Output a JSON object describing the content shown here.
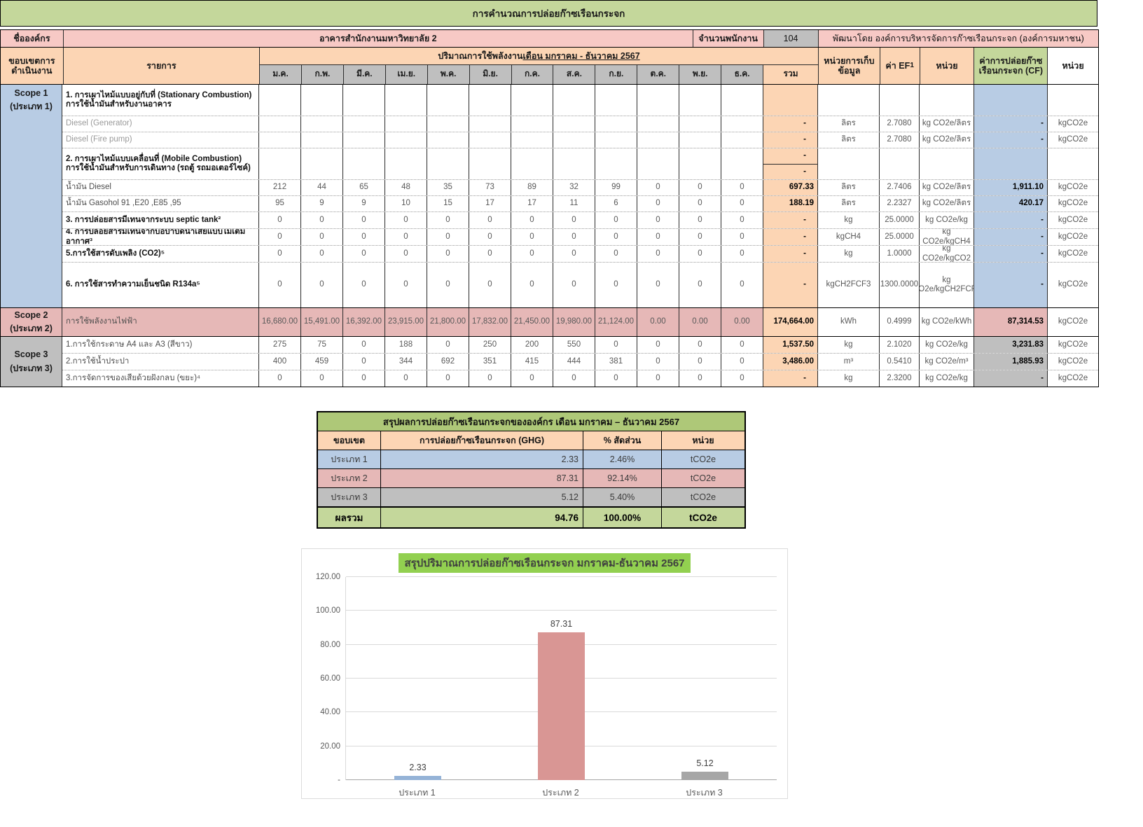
{
  "page_title": "การคำนวณการปล่อยก๊าซเรือนกระจก",
  "org": {
    "label": "ชื่อองค์กร",
    "name": "อาคารสำนักงานมหาวิทยาลัย 2",
    "employees_label": "จำนวนพนักงาน",
    "employees_count": "104",
    "developer": "พัฒนาโดย องค์การบริหารจัดการก๊าซเรือนกระจก (องค์การมหาชน)"
  },
  "main_table": {
    "scope_col_header_line1": "ขอบเขตการ",
    "scope_col_header_line2": "ดำเนินงาน",
    "item_col_header": "รายการ",
    "energy_header_prefix": "ปริมาณการใช้พลังงาน ",
    "energy_header_period": "เดือน มกราคม - ธันวาคม 2567",
    "months": [
      "ม.ค.",
      "ก.พ.",
      "มี.ค.",
      "เม.ย.",
      "พ.ค.",
      "มิ.ย.",
      "ก.ค.",
      "ส.ค.",
      "ก.ย.",
      "ต.ค.",
      "พ.ย.",
      "ธ.ค."
    ],
    "total_header": "รวม",
    "unit_store_header_line1": "หน่วยการเก็บ",
    "unit_store_header_line2": "ข้อมูล",
    "ef_header": "ค่า EF",
    "ef_header_sup": "1",
    "unit_header": "หน่วย",
    "cf_header": "ค่าการปล่อยก๊าซเรือนกระจก (CF)",
    "cf_unit_header": "หน่วย",
    "scopes": [
      {
        "label": "Scope 1",
        "sublabel": "(ประเภท 1)",
        "theme": "s1",
        "rows": [
          {
            "kind": "section",
            "h": 44,
            "lines": [
              "1. การเผาไหม้แบบอยู่กับที่ (Stationary Combustion)",
              "การใช้น้ำมันสำหรับงานอาคาร"
            ],
            "totals": [
              "",
              ""
            ]
          },
          {
            "kind": "item",
            "h": 22,
            "style": "muted",
            "label": "Diesel (Generator)",
            "values": [
              "",
              "",
              "",
              "",
              "",
              "",
              "",
              "",
              "",
              "",
              "",
              ""
            ],
            "total": "-",
            "unit_store": "ลิตร",
            "ef": "2.7080",
            "ef_unit": "kg CO2e/ลิตร",
            "cf": "-",
            "cf_unit": "kgCO2e"
          },
          {
            "kind": "item",
            "h": 22,
            "style": "muted",
            "label": "Diesel (Fire pump)",
            "values": [
              "",
              "",
              "",
              "",
              "",
              "",
              "",
              "",
              "",
              "",
              "",
              ""
            ],
            "total": "-",
            "unit_store": "ลิตร",
            "ef": "2.7080",
            "ef_unit": "kg CO2e/ลิตร",
            "cf": "-",
            "cf_unit": "kgCO2e"
          },
          {
            "kind": "section",
            "h": 44,
            "lines": [
              "2. การเผาไหม้แบบเคลื่อนที่ (Mobile Combustion)",
              "การใช้น้ำมันสำหรับการเดินทาง (รถตู้  รถมอเตอร์ไซค์)"
            ],
            "totals": [
              "-",
              "-"
            ]
          },
          {
            "kind": "item",
            "h": 22,
            "style": "reg",
            "label": "น้ำมัน Diesel",
            "values": [
              "212",
              "44",
              "65",
              "48",
              "35",
              "73",
              "89",
              "32",
              "99",
              "0",
              "0",
              "0"
            ],
            "total": "697.33",
            "unit_store": "ลิตร",
            "ef": "2.7406",
            "ef_unit": "kg CO2e/ลิตร",
            "cf": "1,911.10",
            "cf_unit": "kgCO2e"
          },
          {
            "kind": "item",
            "h": 22,
            "style": "reg",
            "label": "น้ำมัน Gasohol 91 ,E20 ,E85 ,95",
            "values": [
              "95",
              "9",
              "9",
              "10",
              "15",
              "17",
              "17",
              "11",
              "6",
              "0",
              "0",
              "0"
            ],
            "total": "188.19",
            "unit_store": "ลิตร",
            "ef": "2.2327",
            "ef_unit": "kg CO2e/ลิตร",
            "cf": "420.17",
            "cf_unit": "kgCO2e"
          },
          {
            "kind": "item",
            "h": 23,
            "style": "bold",
            "label": "3. การปล่อยสารมีเทนจากระบบ septic tank²",
            "values": [
              "0",
              "0",
              "0",
              "0",
              "0",
              "0",
              "0",
              "0",
              "0",
              "0",
              "0",
              "0"
            ],
            "total": "-",
            "unit_store": "kg",
            "ef": "25.0000",
            "ef_unit": "kg CO2e/kg",
            "cf": "-",
            "cf_unit": "kgCO2e"
          },
          {
            "kind": "item",
            "h": 23,
            "style": "bold",
            "label": "4. การปล่อยสารมีเทนจากบ่อบำบัดน้ำเสียแบบไม่เติมอากาศ³",
            "values": [
              "0",
              "0",
              "0",
              "0",
              "0",
              "0",
              "0",
              "0",
              "0",
              "0",
              "0",
              "0"
            ],
            "total": "-",
            "unit_store": "kgCH4",
            "ef": "25.0000",
            "ef_unit": "kg CO2e/kgCH4",
            "cf": "-",
            "cf_unit": "kgCO2e"
          },
          {
            "kind": "item",
            "h": 23,
            "style": "bold",
            "label": "5.การใช้สารดับเพลิง (CO2)⁵",
            "values": [
              "0",
              "0",
              "0",
              "0",
              "0",
              "0",
              "0",
              "0",
              "0",
              "0",
              "0",
              "0"
            ],
            "total": "-",
            "unit_store": "kg",
            "ef": "1.0000",
            "ef_unit": "kg CO2e/kgCO2",
            "cf": "-",
            "cf_unit": "kgCO2e"
          },
          {
            "kind": "item",
            "h": 64,
            "style": "bold",
            "label": "6. การใช้สารทำความเย็นชนิด R134a⁵",
            "values": [
              "0",
              "0",
              "0",
              "0",
              "0",
              "0",
              "0",
              "0",
              "0",
              "0",
              "0",
              "0"
            ],
            "total": "-",
            "unit_store": "kgCH2FCF3",
            "ef": "1300.0000",
            "ef_unit": "kg CO2e/kgCH2FCF3",
            "cf": "-",
            "cf_unit": "kgCO2e"
          }
        ]
      },
      {
        "label": "Scope 2",
        "sublabel": "(ประเภท 2)",
        "theme": "s2",
        "rows": [
          {
            "kind": "item",
            "h": 40,
            "style": "reg",
            "label": "การใช้พลังงานไฟฟ้า",
            "values": [
              "16,680.00",
              "15,491.00",
              "16,392.00",
              "23,915.00",
              "21,800.00",
              "17,832.00",
              "21,450.00",
              "19,980.00",
              "21,124.00",
              "0.00",
              "0.00",
              "0.00"
            ],
            "total": "174,664.00",
            "unit_store": "kWh",
            "ef": "0.4999",
            "ef_unit": "kg CO2e/kWh",
            "cf": "87,314.53",
            "cf_unit": "kgCO2e"
          }
        ]
      },
      {
        "label": "Scope 3",
        "sublabel": "(ประเภท 3)",
        "theme": "s3",
        "rows": [
          {
            "kind": "item",
            "h": 23,
            "style": "reg",
            "label": "1.การใช้กระดาษ A4 และ A3 (สีขาว)",
            "values": [
              "275",
              "75",
              "0",
              "188",
              "0",
              "250",
              "200",
              "550",
              "0",
              "0",
              "0",
              "0"
            ],
            "total": "1,537.50",
            "unit_store": "kg",
            "ef": "2.1020",
            "ef_unit": "kg CO2e/kg",
            "cf": "3,231.83",
            "cf_unit": "kgCO2e"
          },
          {
            "kind": "item",
            "h": 23,
            "style": "reg",
            "label": "2.การใช้น้ำประปา",
            "values": [
              "400",
              "459",
              "0",
              "344",
              "692",
              "351",
              "415",
              "444",
              "381",
              "0",
              "0",
              "0"
            ],
            "total": "3,486.00",
            "unit_store": "m³",
            "ef": "0.5410",
            "ef_unit": "kg CO2e/m³",
            "cf": "1,885.93",
            "cf_unit": "kgCO2e"
          },
          {
            "kind": "item",
            "h": 23,
            "style": "reg",
            "label": "3.การจัดการของเสียด้วยฝังกลบ (ขยะ)⁴",
            "values": [
              "0",
              "0",
              "0",
              "0",
              "0",
              "0",
              "0",
              "0",
              "0",
              "0",
              "0",
              "0"
            ],
            "total": "-",
            "unit_store": "kg",
            "ef": "2.3200",
            "ef_unit": "kg CO2e/kg",
            "cf": "-",
            "cf_unit": "kgCO2e"
          }
        ]
      }
    ]
  },
  "summary": {
    "title": "สรุปผลการปล่อยก๊าซเรือนกระจกขององค์กร  เดือน มกราคม – ธันวาคม 2567",
    "headers": [
      "ขอบเขต",
      "การปล่อยก๊าซเรือนกระจก (GHG)",
      "% สัดส่วน",
      "หน่วย"
    ],
    "rows": [
      {
        "scope": "ประเภท 1",
        "value": "2.33",
        "pct": "2.46%",
        "unit": "tCO2e",
        "theme": "s1",
        "total": false
      },
      {
        "scope": "ประเภท 2",
        "value": "87.31",
        "pct": "92.14%",
        "unit": "tCO2e",
        "theme": "s2",
        "total": false
      },
      {
        "scope": "ประเภท 3",
        "value": "5.12",
        "pct": "5.40%",
        "unit": "tCO2e",
        "theme": "s3",
        "total": false
      },
      {
        "scope": "ผลรวม",
        "value": "94.76",
        "pct": "100.00%",
        "unit": "tCO2e",
        "theme": "grn",
        "total": true
      }
    ]
  },
  "chart_data": {
    "type": "bar",
    "title": "สรุปปริมาณการปล่อยก๊าซเรือนกระจก มกราคม-ธันวาคม 2567",
    "categories": [
      "ประเภท 1",
      "ประเภท 2",
      "ประเภท 3"
    ],
    "values": [
      2.33,
      87.31,
      5.12
    ],
    "value_labels": [
      "2.33",
      "87.31",
      "5.12"
    ],
    "bar_colors": [
      "#95b3d7",
      "#d99694",
      "#a6a6a6"
    ],
    "yticks": [
      {
        "label": "120.00",
        "v": 120
      },
      {
        "label": "100.00",
        "v": 100
      },
      {
        "label": "80.00",
        "v": 80
      },
      {
        "label": "60.00",
        "v": 60
      },
      {
        "label": "40.00",
        "v": 40
      },
      {
        "label": "20.00",
        "v": 20
      },
      {
        "label": "-",
        "v": 0
      }
    ],
    "ylim": [
      0,
      120
    ],
    "xlabel": "",
    "ylabel": "",
    "grid": true,
    "legend": "none"
  },
  "colors": {
    "title_green": "#c4d79b",
    "header_orange": "#fcd5b4",
    "org_pink": "#f7c9c5",
    "scope1_blue": "#b8cce4",
    "scope2_pink": "#e6b8b7",
    "scope3_gray": "#bfbfbf",
    "summary_title_green": "#aec878",
    "chart_title_highlight": "#92d050"
  }
}
